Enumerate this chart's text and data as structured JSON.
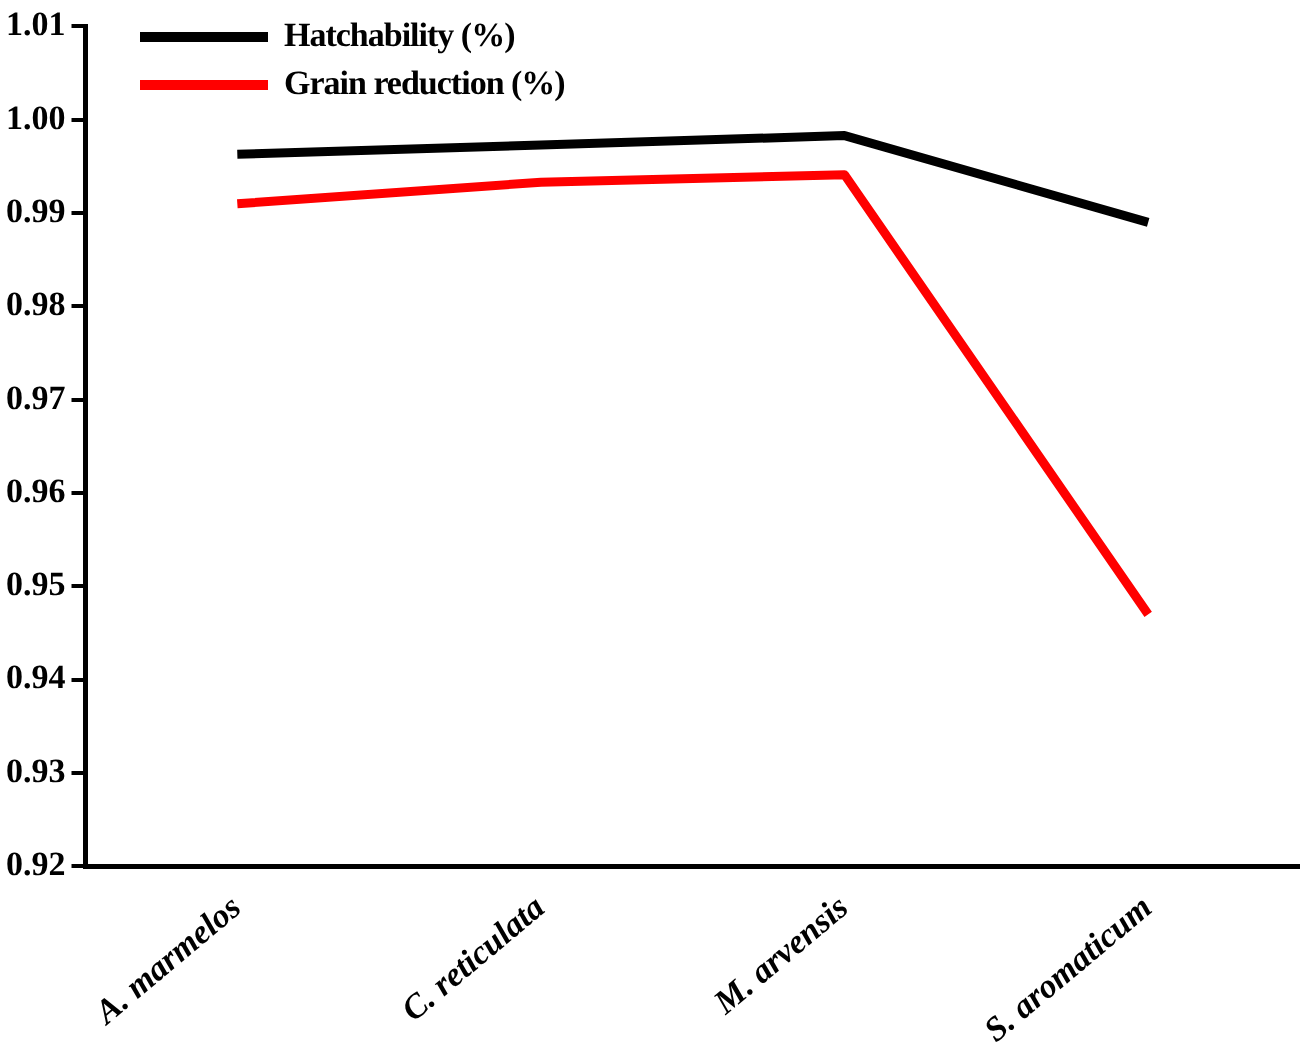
{
  "chart_data": {
    "type": "line",
    "categories": [
      "A. marmelos",
      "C. reticulata",
      "M. arvensis",
      "S. aromaticum"
    ],
    "series": [
      {
        "name": "Hatchability (%)",
        "color": "#000000",
        "values": [
          0.9963,
          0.9973,
          0.9983,
          0.989
        ]
      },
      {
        "name": "Grain reduction (%)",
        "color": "#ff0000",
        "values": [
          0.991,
          0.9933,
          0.9941,
          0.947
        ]
      }
    ],
    "ylim": [
      0.92,
      1.01
    ],
    "yticks": [
      0.92,
      0.93,
      0.94,
      0.95,
      0.96,
      0.97,
      0.98,
      0.99,
      {
        "value": 1,
        "label": "1.00"
      },
      1.01
    ],
    "grid": false,
    "legend": "top left",
    "marker": "none",
    "line_style": "solid"
  }
}
